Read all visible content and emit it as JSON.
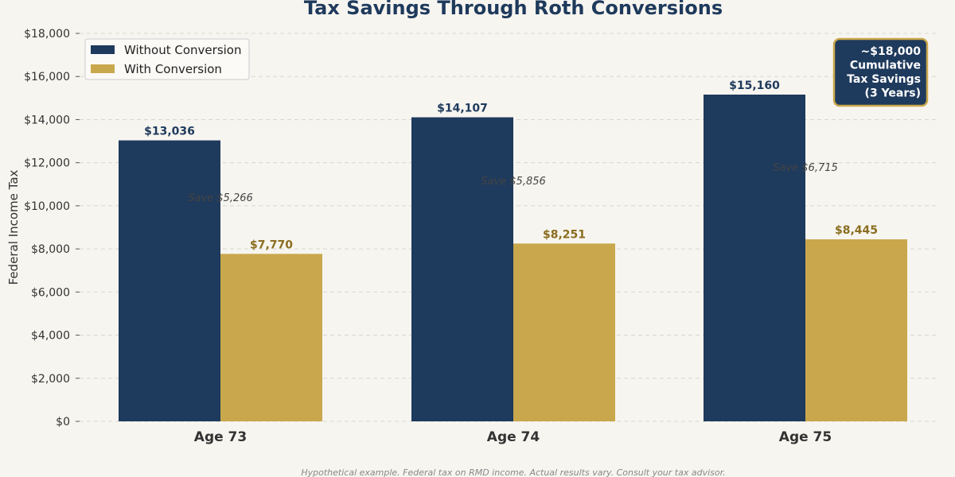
{
  "chart_data": {
    "type": "bar",
    "title": "Tax Savings Through Roth Conversions",
    "xlabel": "",
    "ylabel": "Federal Income Tax",
    "categories": [
      "Age 73",
      "Age 74",
      "Age 75"
    ],
    "series": [
      {
        "name": "Without Conversion",
        "values": [
          13036,
          14107,
          15160
        ],
        "color": "#1e3a5c",
        "labels": [
          "$13,036",
          "$14,107",
          "$15,160"
        ]
      },
      {
        "name": "With Conversion",
        "values": [
          7770,
          8251,
          8445
        ],
        "color": "#c9a74c",
        "labels": [
          "$7,770",
          "$8,251",
          "$8,445"
        ]
      }
    ],
    "savings_labels": [
      "Save $5,266",
      "Save $5,856",
      "Save $6,715"
    ],
    "ylim": [
      0,
      18000
    ],
    "yticks": [
      0,
      2000,
      4000,
      6000,
      8000,
      10000,
      12000,
      14000,
      16000,
      18000
    ],
    "ytick_labels": [
      "$0",
      "$2,000",
      "$4,000",
      "$6,000",
      "$8,000",
      "$10,000",
      "$12,000",
      "$14,000",
      "$16,000",
      "$18,000"
    ],
    "grid": true,
    "legend": "top-left",
    "annotation": [
      "~$18,000",
      "Cumulative",
      "Tax Savings",
      "(3 Years)"
    ],
    "footnote": "Hypothetical example. Federal tax on RMD income. Actual results vary. Consult your tax advisor."
  }
}
